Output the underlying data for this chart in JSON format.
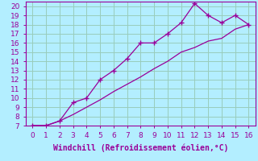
{
  "xlabel": "Windchill (Refroidissement éolien,°C)",
  "background_color": "#b3eeff",
  "grid_color": "#99ccbb",
  "line_color": "#990099",
  "spine_color": "#990099",
  "xlim": [
    -0.5,
    16.5
  ],
  "ylim": [
    7,
    20.5
  ],
  "xticks": [
    0,
    1,
    2,
    3,
    4,
    5,
    6,
    7,
    8,
    9,
    10,
    11,
    12,
    13,
    14,
    15,
    16
  ],
  "yticks": [
    7,
    8,
    9,
    10,
    11,
    12,
    13,
    14,
    15,
    16,
    17,
    18,
    19,
    20
  ],
  "line1_x": [
    0,
    1,
    2,
    3,
    4,
    5,
    6,
    7,
    8,
    9,
    10,
    11,
    12,
    13,
    14,
    15,
    16
  ],
  "line1_y": [
    7,
    7,
    7.5,
    9.5,
    10,
    12,
    13,
    14.3,
    16,
    16,
    17,
    18.2,
    20.3,
    19,
    18.2,
    19,
    18
  ],
  "line2_x": [
    0,
    1,
    2,
    3,
    4,
    5,
    6,
    7,
    8,
    9,
    10,
    11,
    12,
    13,
    14,
    15,
    16
  ],
  "line2_y": [
    7,
    7,
    7.5,
    8.2,
    9.0,
    9.8,
    10.7,
    11.5,
    12.3,
    13.2,
    14.0,
    15.0,
    15.5,
    16.2,
    16.5,
    17.5,
    18.0
  ],
  "xlabel_fontsize": 7,
  "tick_fontsize": 6.5
}
